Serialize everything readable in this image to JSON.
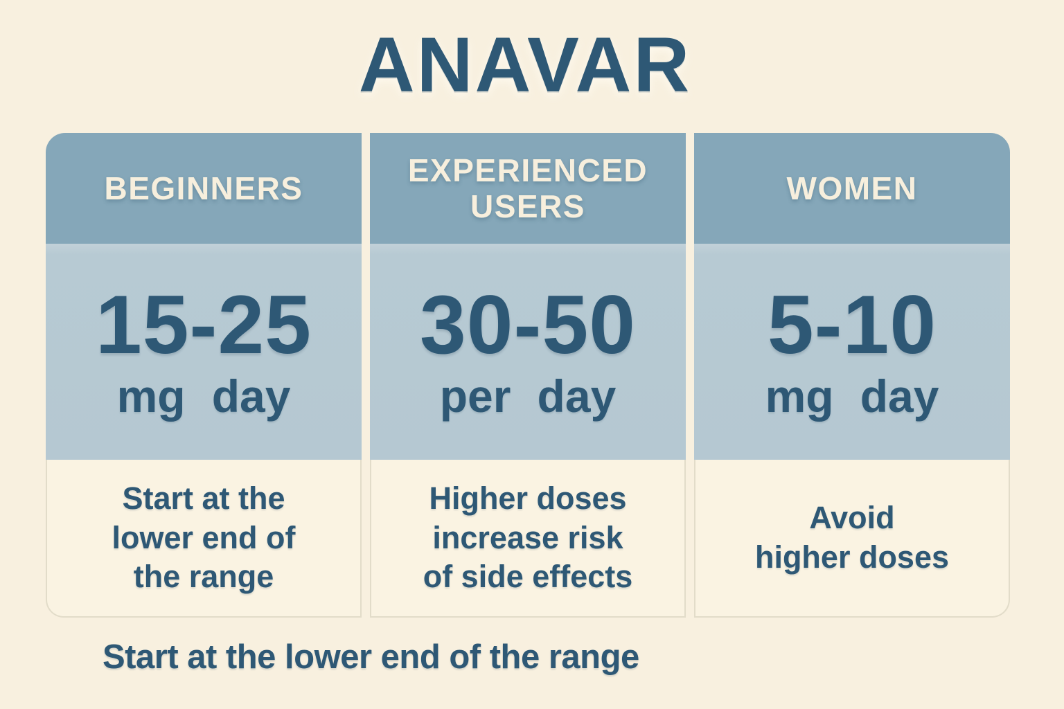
{
  "title": "ANAVAR",
  "columns": [
    {
      "header": "BEGINNERS",
      "dose": "15-25",
      "unit": "mg day",
      "note": "Start at the\nlower end of\nthe range"
    },
    {
      "header": "EXPERIENCED\nUSERS",
      "dose": "30-50",
      "unit": "per day",
      "note": "Higher doses\nincrease risk\nof side effects"
    },
    {
      "header": "WOMEN",
      "dose": "5-10",
      "unit": "mg day",
      "note": "Avoid\nhigher doses"
    }
  ],
  "footer": "Start at the lower end of the range",
  "colors": {
    "background": "#f8f0df",
    "header_bg": "#85a7b9",
    "dose_bg": "#b7cad3",
    "note_panel_bg": "#faf3e2",
    "note_panel_border": "#e2dcc9",
    "text_dark_blue": "#2e5875",
    "text_cream": "#f7efdd"
  },
  "chart_data": {
    "type": "table",
    "title": "ANAVAR",
    "columns": [
      "BEGINNERS",
      "EXPERIENCED USERS",
      "WOMEN"
    ],
    "rows": [
      [
        "15-25 mg day",
        "30-50 per day",
        "5-10 mg day"
      ],
      [
        "Start at the lower end of the range",
        "Higher doses increase risk of side effects",
        "Avoid higher doses"
      ]
    ],
    "footnote": "Start at the lower end of the range",
    "legend_position": "none",
    "grid": false
  }
}
